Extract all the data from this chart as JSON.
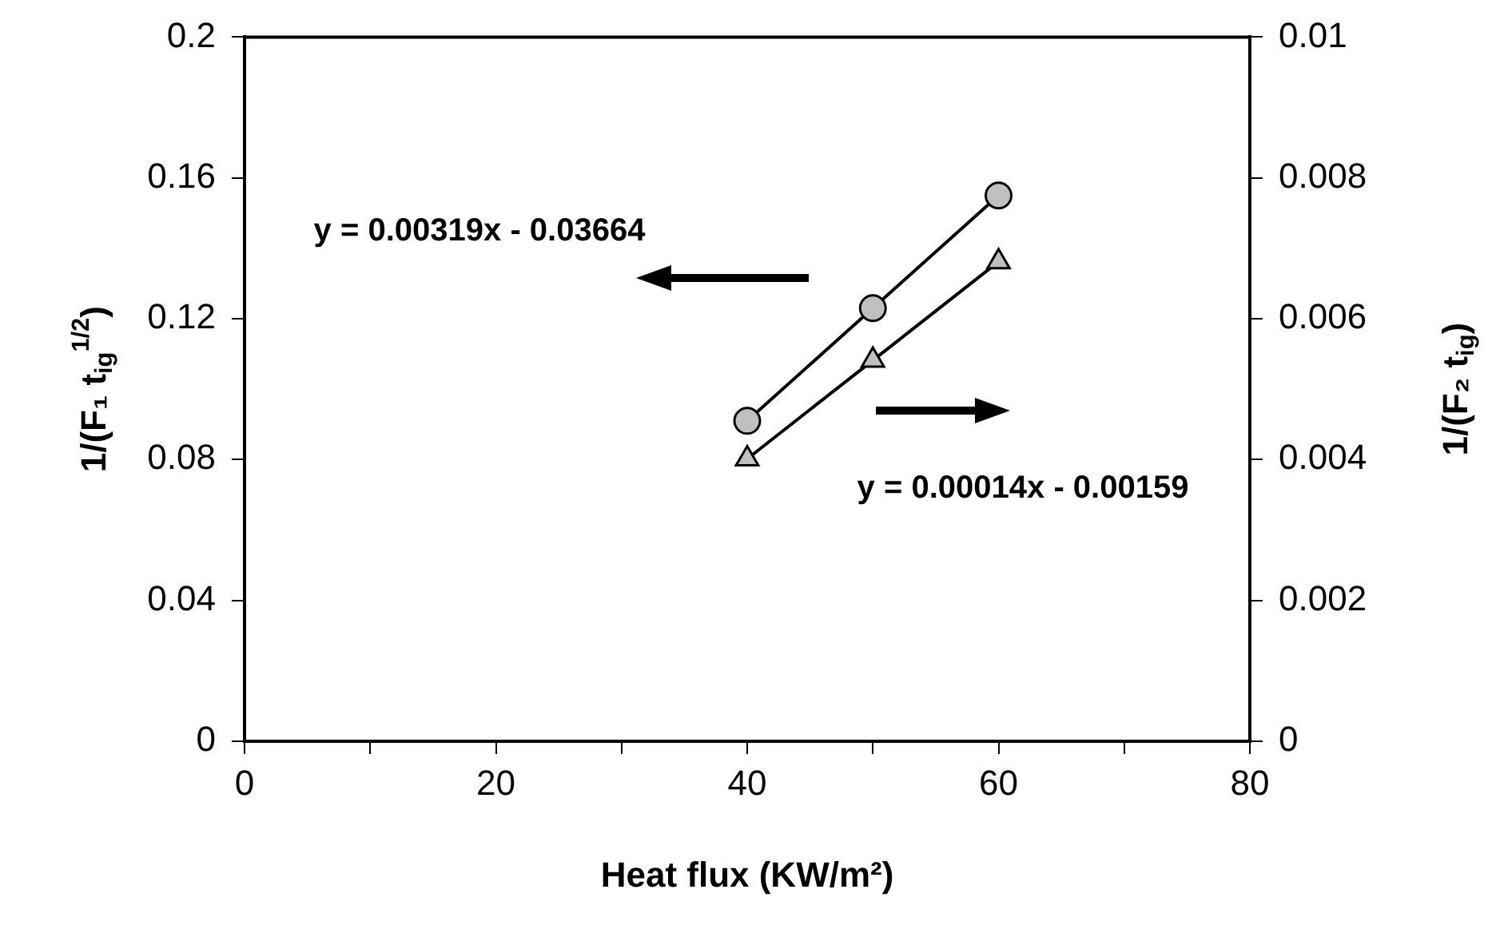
{
  "chart_data": {
    "type": "scatter",
    "xlabel": "Heat flux (KW/m²)",
    "ylabel": "1/(F₁ t$_{ig}$$^{1/2}$)",
    "y2label": "1/(F₂ t$_{ig}$)",
    "xlim": [
      0,
      80
    ],
    "xticks": [
      0,
      {
        "value": 10,
        "label": null
      },
      20,
      {
        "value": 30,
        "label": null
      },
      40,
      {
        "value": 50,
        "label": null
      },
      60,
      {
        "value": 70,
        "label": null
      },
      80
    ],
    "ylim": [
      0,
      0.2
    ],
    "yticks": [
      0,
      0.04,
      0.08,
      0.12,
      0.16,
      0.2
    ],
    "y2lim": [
      0,
      0.01
    ],
    "y2ticks": [
      0,
      0.002,
      0.004,
      0.006,
      0.008,
      0.01
    ],
    "series": [
      {
        "type": "line",
        "marker": "circle",
        "color": "#c0c0c0",
        "x": [
          40,
          50,
          60
        ],
        "values": [
          0.091,
          0.123,
          0.155
        ]
      },
      {
        "type": "line",
        "marker": "triangle",
        "color": "#c0c0c0",
        "axis": "y2",
        "x": [
          40,
          50,
          60
        ],
        "values": [
          0.00401,
          0.00541,
          0.00681
        ]
      }
    ],
    "annotations": [
      "y = 0.00319x - 0.03664",
      "y = 0.00014x - 0.00159"
    ],
    "grid": false
  }
}
